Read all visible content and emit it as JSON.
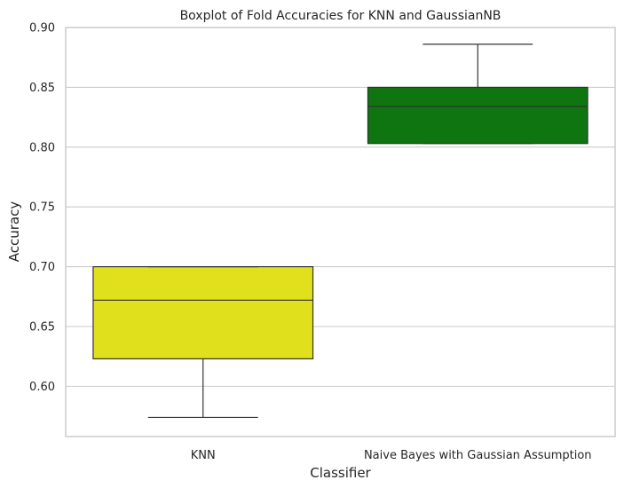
{
  "chart_data": {
    "type": "box",
    "title": "Boxplot of Fold Accuracies for KNN and GaussianNB",
    "xlabel": "Classifier",
    "ylabel": "Accuracy",
    "ylim": [
      0.558,
      0.9
    ],
    "yticks": [
      0.6,
      0.65,
      0.7,
      0.75,
      0.8,
      0.85,
      0.9
    ],
    "ytick_labels": [
      "0.60",
      "0.65",
      "0.70",
      "0.75",
      "0.80",
      "0.85",
      "0.90"
    ],
    "grid": "horizontal",
    "categories": [
      "KNN",
      "Naive Bayes with Gaussian Assumption"
    ],
    "boxes": [
      {
        "category": "KNN",
        "whisker_low": 0.574,
        "q1": 0.623,
        "median": 0.672,
        "q3": 0.7,
        "whisker_high": 0.7,
        "color": "#e0e01c"
      },
      {
        "category": "Naive Bayes with Gaussian Assumption",
        "whisker_low": 0.803,
        "q1": 0.803,
        "median": 0.834,
        "q3": 0.85,
        "whisker_high": 0.886,
        "color": "#0e7510"
      }
    ]
  }
}
